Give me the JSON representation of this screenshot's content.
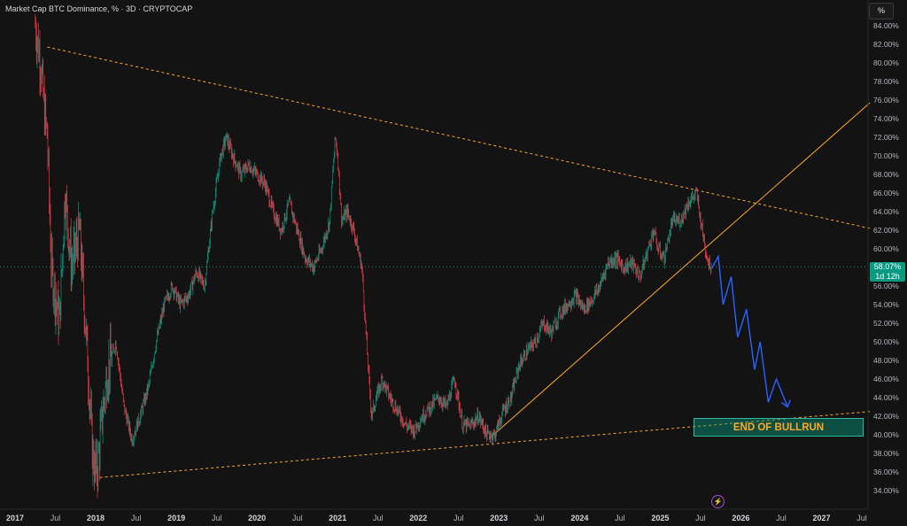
{
  "header": {
    "symbol_title": "Market Cap BTC Dominance, % · 3D · CRYPTOCAP"
  },
  "toolbar": {
    "unit_label": "%"
  },
  "price_tag": {
    "value": "58.07%",
    "countdown": "1d 12h"
  },
  "annotation": {
    "label": "END OF BULLRUN"
  },
  "icons": {
    "bolt": "lightning-icon"
  },
  "colors": {
    "background": "#131313",
    "up": "#089981",
    "down": "#f23645",
    "trendline": "#ffa726",
    "projection": "#2962ff",
    "axis_text": "#b2b5be"
  },
  "chart_data": {
    "type": "line",
    "title": "Market Cap BTC Dominance, % · 3D · CRYPTOCAP",
    "ylim": [
      33.3,
      86.5
    ],
    "y_ticks": [
      "84.00%",
      "82.00%",
      "80.00%",
      "78.00%",
      "76.00%",
      "74.00%",
      "72.00%",
      "70.00%",
      "68.00%",
      "66.00%",
      "64.00%",
      "62.00%",
      "60.00%",
      "58.00%",
      "56.00%",
      "54.00%",
      "52.00%",
      "50.00%",
      "48.00%",
      "46.00%",
      "44.00%",
      "42.00%",
      "40.00%",
      "38.00%",
      "36.00%",
      "34.00%"
    ],
    "x_ticks": [
      "2017",
      "Jul",
      "2018",
      "Jul",
      "2019",
      "Jul",
      "2020",
      "Jul",
      "2021",
      "Jul",
      "2022",
      "Jul",
      "2023",
      "Jul",
      "2024",
      "Jul",
      "2025",
      "Jul",
      "2026",
      "Jul",
      "2027",
      "Jul"
    ],
    "x_tick_dates": [
      2017.0,
      2017.5,
      2018.0,
      2018.5,
      2019.0,
      2019.5,
      2020.0,
      2020.5,
      2021.0,
      2021.5,
      2022.0,
      2022.5,
      2023.0,
      2023.5,
      2024.0,
      2024.5,
      2025.0,
      2025.5,
      2026.0,
      2026.5,
      2027.0,
      2027.5
    ],
    "current_value": 58.07,
    "series": [
      {
        "x": [
          2017.25,
          2017.32,
          2017.36,
          2017.4,
          2017.45,
          2017.5,
          2017.55,
          2017.62,
          2017.7,
          2017.8,
          2017.9,
          2017.96,
          2018.0,
          2018.03,
          2018.08,
          2018.15,
          2018.25,
          2018.35,
          2018.45,
          2018.55,
          2018.65,
          2018.75,
          2018.85,
          2018.95,
          2019.05,
          2019.15,
          2019.25,
          2019.35,
          2019.45,
          2019.55,
          2019.62,
          2019.7,
          2019.8,
          2019.9,
          2020.0,
          2020.1,
          2020.2,
          2020.3,
          2020.4,
          2020.5,
          2020.6,
          2020.7,
          2020.8,
          2020.9,
          2020.97,
          2021.0,
          2021.05,
          2021.12,
          2021.2,
          2021.3,
          2021.38,
          2021.42,
          2021.48,
          2021.55,
          2021.65,
          2021.75,
          2021.85,
          2021.95,
          2022.05,
          2022.15,
          2022.25,
          2022.35,
          2022.45,
          2022.55,
          2022.65,
          2022.75,
          2022.85,
          2022.95,
          2023.05,
          2023.15,
          2023.25,
          2023.35,
          2023.45,
          2023.55,
          2023.65,
          2023.75,
          2023.85,
          2023.95,
          2024.05,
          2024.15,
          2024.25,
          2024.35,
          2024.45,
          2024.55,
          2024.65,
          2024.75,
          2024.85,
          2024.92,
          2024.97,
          2025.05,
          2025.15,
          2025.25,
          2025.35,
          2025.45,
          2025.52,
          2025.56,
          2025.6,
          2025.64
        ],
        "y": [
          84.0,
          80.0,
          75.0,
          72.0,
          58.0,
          55.0,
          52.0,
          66.0,
          58.0,
          62.0,
          48.0,
          38.0,
          36.0,
          37.0,
          42.0,
          47.0,
          50.0,
          43.0,
          39.5,
          42.0,
          45.0,
          50.0,
          54.0,
          56.0,
          54.0,
          55.0,
          57.5,
          56.0,
          64.0,
          70.0,
          72.0,
          70.0,
          68.0,
          69.0,
          68.0,
          67.0,
          64.0,
          62.0,
          65.0,
          62.0,
          59.0,
          58.0,
          60.0,
          63.0,
          72.0,
          70.0,
          63.0,
          64.0,
          62.0,
          58.0,
          47.0,
          42.0,
          44.0,
          46.0,
          44.0,
          42.5,
          41.0,
          40.5,
          42.0,
          43.0,
          44.0,
          43.0,
          46.0,
          41.0,
          41.0,
          42.0,
          40.0,
          40.0,
          42.5,
          44.0,
          47.5,
          49.0,
          50.0,
          52.0,
          51.0,
          53.0,
          54.0,
          55.0,
          53.5,
          54.5,
          56.0,
          58.5,
          59.0,
          58.0,
          58.5,
          57.0,
          60.0,
          62.0,
          60.0,
          59.0,
          63.0,
          63.0,
          65.0,
          66.0,
          62.0,
          60.0,
          58.5,
          58.07
        ]
      }
    ],
    "projection": {
      "x": [
        2025.64,
        2025.72,
        2025.78,
        2025.88,
        2025.96,
        2026.07,
        2026.17,
        2026.24,
        2026.34,
        2026.44,
        2026.58
      ],
      "y": [
        57.9,
        59.2,
        54.0,
        57.0,
        50.5,
        53.5,
        47.0,
        50.0,
        43.5,
        46.0,
        43.0
      ]
    },
    "trendlines": [
      {
        "name": "upper",
        "x": [
          2017.4,
          2027.6
        ],
        "y": [
          81.7,
          62.2
        ]
      },
      {
        "name": "lower",
        "x": [
          2018.05,
          2027.6
        ],
        "y": [
          35.4,
          42.5
        ]
      },
      {
        "name": "support",
        "x": [
          2022.88,
          2027.6
        ],
        "y": [
          39.6,
          75.7
        ]
      }
    ]
  }
}
